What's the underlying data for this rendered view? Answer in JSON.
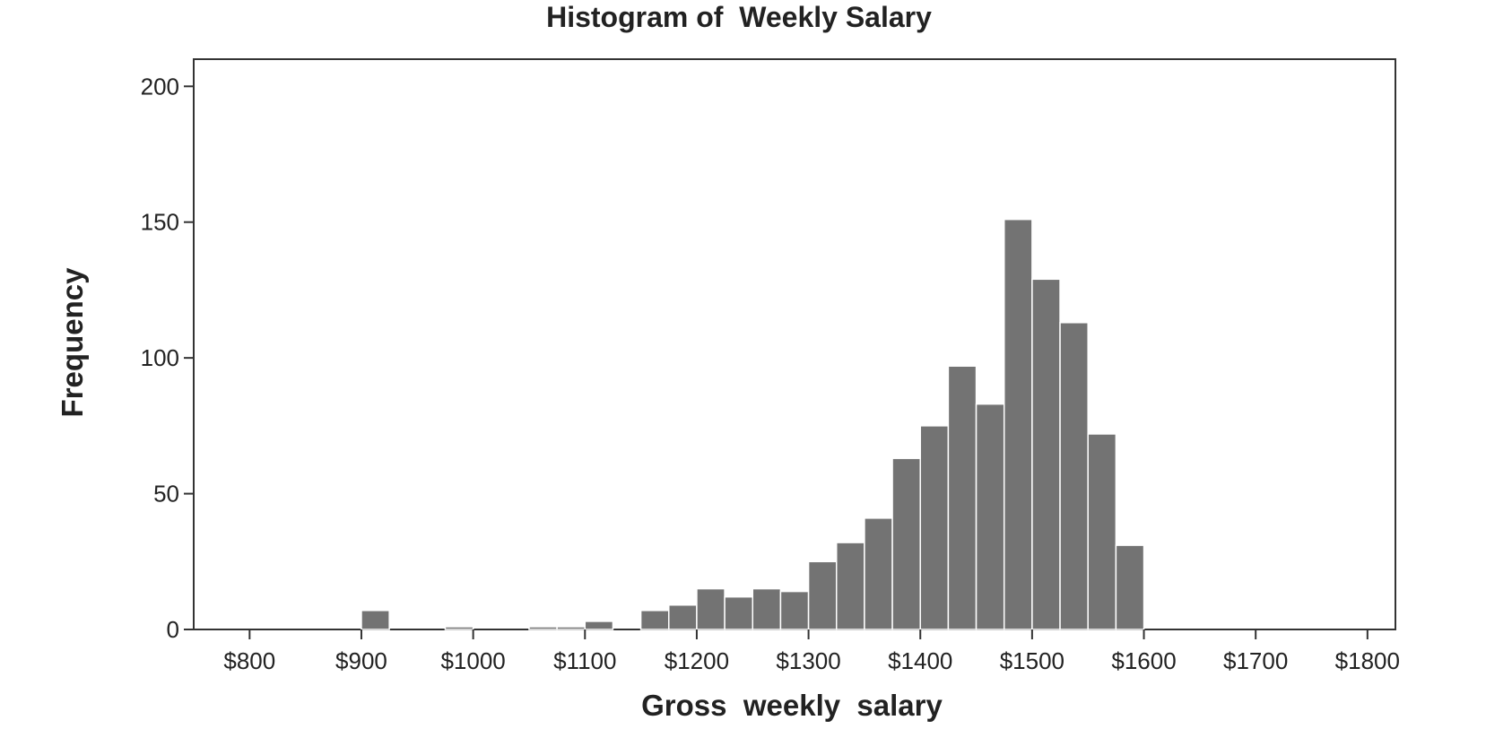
{
  "chart_data": {
    "type": "bar",
    "title": "Histogram of  Weekly Salary",
    "xlabel": "Gross  weekly  salary",
    "ylabel": "Frequency",
    "bin_width": 25,
    "xlim": [
      750,
      1825
    ],
    "ylim": [
      0,
      210
    ],
    "x_ticks": [
      {
        "value": 800,
        "label": "$800"
      },
      {
        "value": 900,
        "label": "$900"
      },
      {
        "value": 1000,
        "label": "$1000"
      },
      {
        "value": 1100,
        "label": "$1100"
      },
      {
        "value": 1200,
        "label": "$1200"
      },
      {
        "value": 1300,
        "label": "$1300"
      },
      {
        "value": 1400,
        "label": "$1400"
      },
      {
        "value": 1500,
        "label": "$1500"
      },
      {
        "value": 1600,
        "label": "$1600"
      },
      {
        "value": 1700,
        "label": "$1700"
      },
      {
        "value": 1800,
        "label": "$1800"
      }
    ],
    "y_ticks": [
      {
        "value": 0,
        "label": "0"
      },
      {
        "value": 50,
        "label": "50"
      },
      {
        "value": 100,
        "label": "100"
      },
      {
        "value": 150,
        "label": "150"
      },
      {
        "value": 200,
        "label": "200"
      }
    ],
    "bins": [
      {
        "start": 900,
        "end": 925,
        "count": 7
      },
      {
        "start": 975,
        "end": 1000,
        "count": 1
      },
      {
        "start": 1050,
        "end": 1075,
        "count": 1
      },
      {
        "start": 1075,
        "end": 1100,
        "count": 1
      },
      {
        "start": 1100,
        "end": 1125,
        "count": 3
      },
      {
        "start": 1150,
        "end": 1175,
        "count": 7
      },
      {
        "start": 1175,
        "end": 1200,
        "count": 9
      },
      {
        "start": 1200,
        "end": 1225,
        "count": 15
      },
      {
        "start": 1225,
        "end": 1250,
        "count": 12
      },
      {
        "start": 1250,
        "end": 1275,
        "count": 15
      },
      {
        "start": 1275,
        "end": 1300,
        "count": 14
      },
      {
        "start": 1300,
        "end": 1325,
        "count": 25
      },
      {
        "start": 1325,
        "end": 1350,
        "count": 32
      },
      {
        "start": 1350,
        "end": 1375,
        "count": 41
      },
      {
        "start": 1375,
        "end": 1400,
        "count": 63
      },
      {
        "start": 1400,
        "end": 1425,
        "count": 75
      },
      {
        "start": 1425,
        "end": 1450,
        "count": 97
      },
      {
        "start": 1450,
        "end": 1475,
        "count": 83
      },
      {
        "start": 1475,
        "end": 1500,
        "count": 151
      },
      {
        "start": 1500,
        "end": 1525,
        "count": 129
      },
      {
        "start": 1525,
        "end": 1550,
        "count": 113
      },
      {
        "start": 1550,
        "end": 1575,
        "count": 72
      },
      {
        "start": 1575,
        "end": 1600,
        "count": 31
      }
    ],
    "colors": {
      "bar_fill": "#737373",
      "bar_stroke": "#ffffff",
      "axis": "#333333",
      "frame": "#333333"
    },
    "grid": false,
    "legend": "none"
  }
}
